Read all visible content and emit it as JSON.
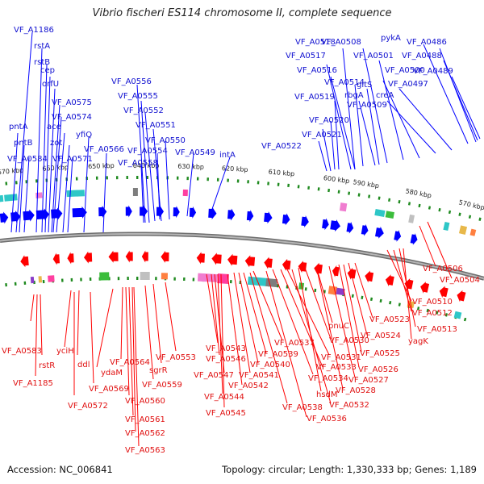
{
  "title": "Vibrio fischeri ES114 chromosome II, complete sequence",
  "footer": {
    "accession": "Accession: NC_006841",
    "stats": "Topology: circular; Length: 1,330,333 bp; Genes: 1,189"
  },
  "colors": {
    "forward_strand": "#0000ff",
    "reverse_strand": "#ff0000",
    "tick_marks": "#1f8a1f",
    "backbone": "#8c8c8c"
  },
  "kbp_ticks": [
    "670 kbp",
    "660 kbp",
    "650 kbp",
    "640 kbp",
    "630 kbp",
    "620 kbp",
    "610 kbp",
    "600 kbp",
    "590 kbp",
    "580 kbp",
    "570 kbp"
  ],
  "top_labels": [
    "VF_A1186",
    "rstA",
    "rstB",
    "cep",
    "orfU",
    "VF_A0575",
    "VF_A0574",
    "ace",
    "zot",
    "pntA",
    "pntB",
    "VF_A0584",
    "VF_A0571",
    "yfiQ",
    "VF_A0566",
    "VF_A0556",
    "VF_A0555",
    "VF_A0552",
    "VF_A0551",
    "VF_A0550",
    "VF_A0554",
    "VF_A0558",
    "VF_A0549",
    "intA",
    "VF_A0522",
    "VF_A0521",
    "VF_A0520",
    "VF_A0519",
    "VF_A0518",
    "VF_A0517",
    "VF_A0516",
    "VF_A0514",
    "VF_A0508",
    "VF_A0501",
    "gltS",
    "VF_A0500",
    "rbgA",
    "VF_A0509",
    "creA",
    "VF_A0497",
    "pykA",
    "VF_A0486",
    "VF_A0488",
    "VF_A0489"
  ],
  "bottom_labels": [
    "VF_A0583",
    "rstR",
    "VF_A1185",
    "yciH",
    "ddl",
    "VF_A0572",
    "VF_A0569",
    "ydaM",
    "VF_A0564",
    "VF_A0560",
    "VF_A0561",
    "VF_A0562",
    "VF_A0563",
    "VF_A0559",
    "sgrR",
    "VF_A0553",
    "VF_A0543",
    "VF_A0546",
    "VF_A0547",
    "VF_A0544",
    "VF_A0545",
    "VF_A0542",
    "VF_A0541",
    "VF_A0540",
    "VF_A0539",
    "VF_A0537",
    "VF_A0538",
    "VF_A0536",
    "VF_A0534",
    "VF_A0533",
    "VF_A0531",
    "VF_A0532",
    "hsdM",
    "VF_A0530",
    "pnuC",
    "VF_A0528",
    "VF_A0527",
    "VF_A0526",
    "VF_A0525",
    "VF_A0524",
    "VF_A0523",
    "VF_A0510",
    "VF_A0512",
    "VF_A0513",
    "yagK",
    "VF_A0506",
    "VF_A0504"
  ]
}
